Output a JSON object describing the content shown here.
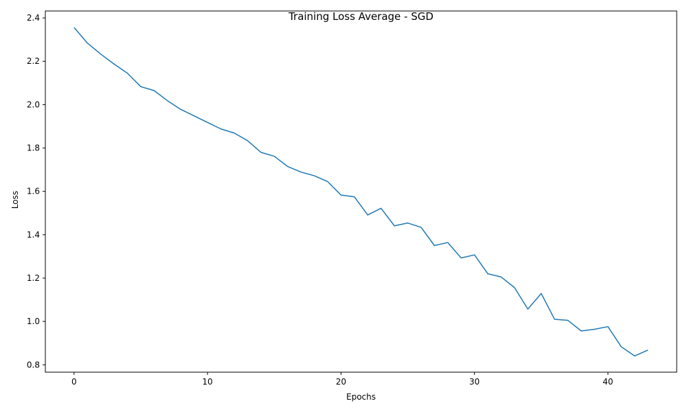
{
  "chart_data": {
    "type": "line",
    "title": "Training Loss Average - SGD",
    "xlabel": "Epochs",
    "ylabel": "Loss",
    "xlim": [
      -2.15,
      45.15
    ],
    "ylim": [
      0.766,
      2.432
    ],
    "x_ticks": [
      0,
      10,
      20,
      30,
      40
    ],
    "x_tick_labels": [
      "0",
      "10",
      "20",
      "30",
      "40"
    ],
    "y_ticks": [
      0.8,
      1.0,
      1.2,
      1.4,
      1.6,
      1.8,
      2.0,
      2.2,
      2.4
    ],
    "y_tick_labels": [
      "0.8",
      "1.0",
      "1.2",
      "1.4",
      "1.6",
      "1.8",
      "2.0",
      "2.2",
      "2.4"
    ],
    "grid": false,
    "legend": "none",
    "colors": {
      "line": "#1f77b4",
      "axes": "#000000",
      "background": "#ffffff"
    },
    "series": [
      {
        "x": [
          0,
          1,
          2,
          3,
          4,
          5,
          6,
          7,
          8,
          9,
          10,
          11,
          12,
          13,
          14,
          15,
          16,
          17,
          18,
          19,
          20,
          21,
          22,
          23,
          24,
          25,
          26,
          27,
          28,
          29,
          30,
          31,
          32,
          33,
          34,
          35,
          36,
          37,
          38,
          39,
          40,
          41,
          42,
          43
        ],
        "values": [
          2.356,
          2.284,
          2.233,
          2.187,
          2.145,
          2.083,
          2.065,
          2.018,
          1.978,
          1.948,
          1.918,
          1.888,
          1.869,
          1.834,
          1.78,
          1.762,
          1.715,
          1.689,
          1.672,
          1.645,
          1.583,
          1.575,
          1.491,
          1.522,
          1.441,
          1.454,
          1.434,
          1.35,
          1.364,
          1.293,
          1.307,
          1.22,
          1.205,
          1.156,
          1.057,
          1.129,
          1.01,
          1.005,
          0.956,
          0.964,
          0.976,
          0.883,
          0.841,
          0.868
        ]
      }
    ]
  }
}
